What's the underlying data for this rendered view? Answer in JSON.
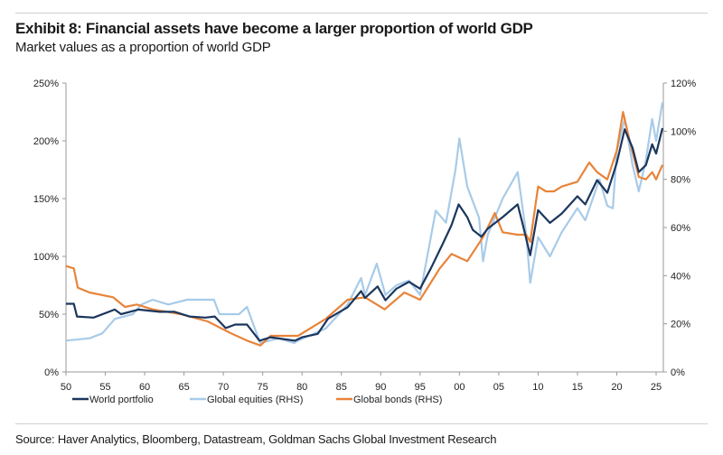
{
  "header": {
    "title": "Exhibit 8: Financial assets have become a larger proportion of world GDP",
    "subtitle": "Market values as a proportion of world GDP"
  },
  "footer": {
    "source": "Source: Haver Analytics, Bloomberg, Datastream, Goldman Sachs Global Investment Research"
  },
  "chart_data": {
    "type": "line",
    "title": "Exhibit 8: Financial assets have become a larger proportion of world GDP",
    "subtitle": "Market values as a proportion of world GDP",
    "x_range": [
      1950,
      2025.8
    ],
    "x_ticks": [
      "50",
      "55",
      "60",
      "65",
      "70",
      "75",
      "80",
      "85",
      "90",
      "95",
      "00",
      "05",
      "10",
      "15",
      "20",
      "25"
    ],
    "y_left": {
      "range": [
        0,
        250
      ],
      "ticks": [
        "0%",
        "50%",
        "100%",
        "150%",
        "200%",
        "250%"
      ]
    },
    "y_right": {
      "range": [
        0,
        120
      ],
      "ticks": [
        "0%",
        "20%",
        "40%",
        "60%",
        "80%",
        "100%",
        "120%"
      ]
    },
    "grid": false,
    "legend_position": "bottom",
    "series": [
      {
        "name": "World portfolio",
        "axis": "left",
        "color": "#1b365d",
        "points": [
          [
            1950,
            59
          ],
          [
            1951,
            59
          ],
          [
            1951.4,
            48
          ],
          [
            1953.5,
            47
          ],
          [
            1956.2,
            54
          ],
          [
            1957,
            50
          ],
          [
            1959.2,
            54
          ],
          [
            1961.9,
            52
          ],
          [
            1963.8,
            52
          ],
          [
            1965.7,
            48
          ],
          [
            1967.7,
            47
          ],
          [
            1968.9,
            48
          ],
          [
            1970.3,
            38
          ],
          [
            1971.5,
            41
          ],
          [
            1973,
            41
          ],
          [
            1974.6,
            27
          ],
          [
            1976,
            30
          ],
          [
            1979.1,
            27
          ],
          [
            1980,
            30
          ],
          [
            1982,
            33
          ],
          [
            1983.3,
            46
          ],
          [
            1985.8,
            56
          ],
          [
            1987.5,
            70
          ],
          [
            1988,
            64
          ],
          [
            1989.6,
            74
          ],
          [
            1990.6,
            62
          ],
          [
            1992,
            72
          ],
          [
            1993.6,
            78
          ],
          [
            1995,
            72
          ],
          [
            1996.4,
            90
          ],
          [
            1997.9,
            111
          ],
          [
            1999,
            127
          ],
          [
            1999.9,
            145
          ],
          [
            2001,
            134
          ],
          [
            2001.7,
            123
          ],
          [
            2002.8,
            117
          ],
          [
            2003.6,
            124
          ],
          [
            2005.5,
            134
          ],
          [
            2007.4,
            145
          ],
          [
            2008,
            129
          ],
          [
            2009,
            101
          ],
          [
            2010,
            140
          ],
          [
            2011.5,
            129
          ],
          [
            2013,
            137
          ],
          [
            2015,
            152
          ],
          [
            2016,
            145
          ],
          [
            2017.5,
            166
          ],
          [
            2018.8,
            155
          ],
          [
            2020,
            181
          ],
          [
            2021,
            210
          ],
          [
            2022,
            194
          ],
          [
            2022.8,
            173
          ],
          [
            2023.7,
            179
          ],
          [
            2024.5,
            197
          ],
          [
            2025,
            189
          ],
          [
            2025.8,
            211
          ]
        ]
      },
      {
        "name": "Global equities (RHS)",
        "axis": "right",
        "color": "#a8cbe8",
        "points": [
          [
            1950,
            13
          ],
          [
            1953,
            14
          ],
          [
            1954.6,
            16
          ],
          [
            1956.2,
            22
          ],
          [
            1958.5,
            24
          ],
          [
            1959.6,
            28
          ],
          [
            1961,
            30
          ],
          [
            1963,
            28
          ],
          [
            1965.4,
            30
          ],
          [
            1968.8,
            30
          ],
          [
            1969.5,
            24
          ],
          [
            1972,
            24
          ],
          [
            1973,
            27
          ],
          [
            1974,
            18
          ],
          [
            1974.7,
            12
          ],
          [
            1977,
            14
          ],
          [
            1979,
            12
          ],
          [
            1979.5,
            13
          ],
          [
            1983,
            18
          ],
          [
            1985.8,
            28
          ],
          [
            1987.5,
            39
          ],
          [
            1988,
            32
          ],
          [
            1989.5,
            45
          ],
          [
            1990.6,
            32
          ],
          [
            1992,
            36
          ],
          [
            1993.6,
            38
          ],
          [
            1995,
            32
          ],
          [
            1997,
            67
          ],
          [
            1998.3,
            62
          ],
          [
            1999.5,
            84
          ],
          [
            2000,
            97
          ],
          [
            2001,
            77
          ],
          [
            2002.5,
            64
          ],
          [
            2003,
            46
          ],
          [
            2003.6,
            57
          ],
          [
            2005.5,
            72
          ],
          [
            2007.4,
            83
          ],
          [
            2008.5,
            57
          ],
          [
            2009,
            37
          ],
          [
            2010,
            56
          ],
          [
            2011.5,
            48
          ],
          [
            2013,
            58
          ],
          [
            2015,
            68
          ],
          [
            2016,
            63
          ],
          [
            2017.8,
            80
          ],
          [
            2018.8,
            69
          ],
          [
            2019.5,
            68
          ],
          [
            2020,
            92
          ],
          [
            2021,
            105
          ],
          [
            2022,
            86
          ],
          [
            2022.8,
            75
          ],
          [
            2023.7,
            88
          ],
          [
            2024.5,
            105
          ],
          [
            2025,
            96
          ],
          [
            2025.8,
            112
          ]
        ]
      },
      {
        "name": "Global bonds (RHS)",
        "axis": "right",
        "color": "#e8843a",
        "points": [
          [
            1950,
            44
          ],
          [
            1951,
            43
          ],
          [
            1951.5,
            35
          ],
          [
            1953,
            33
          ],
          [
            1956,
            31
          ],
          [
            1957.5,
            27
          ],
          [
            1959,
            28
          ],
          [
            1961,
            26
          ],
          [
            1964.6,
            24
          ],
          [
            1968,
            21
          ],
          [
            1971,
            16
          ],
          [
            1973,
            13
          ],
          [
            1974.7,
            11
          ],
          [
            1976,
            15
          ],
          [
            1979.5,
            15
          ],
          [
            1983,
            22
          ],
          [
            1985.8,
            30
          ],
          [
            1988,
            31
          ],
          [
            1990.5,
            26
          ],
          [
            1993,
            33
          ],
          [
            1995,
            30
          ],
          [
            1997.5,
            43
          ],
          [
            1999,
            49
          ],
          [
            2001,
            46
          ],
          [
            2003,
            56
          ],
          [
            2004.5,
            66
          ],
          [
            2005.5,
            58
          ],
          [
            2007.4,
            57
          ],
          [
            2008.5,
            57
          ],
          [
            2009,
            54
          ],
          [
            2010,
            77
          ],
          [
            2011,
            75
          ],
          [
            2012,
            75
          ],
          [
            2013,
            77
          ],
          [
            2015,
            79
          ],
          [
            2016.5,
            87
          ],
          [
            2017.5,
            83
          ],
          [
            2018.8,
            80
          ],
          [
            2020,
            92
          ],
          [
            2020.8,
            108
          ],
          [
            2021.5,
            98
          ],
          [
            2022.8,
            81
          ],
          [
            2023.7,
            80
          ],
          [
            2024.5,
            83
          ],
          [
            2025,
            80
          ],
          [
            2025.8,
            86
          ]
        ]
      }
    ]
  }
}
